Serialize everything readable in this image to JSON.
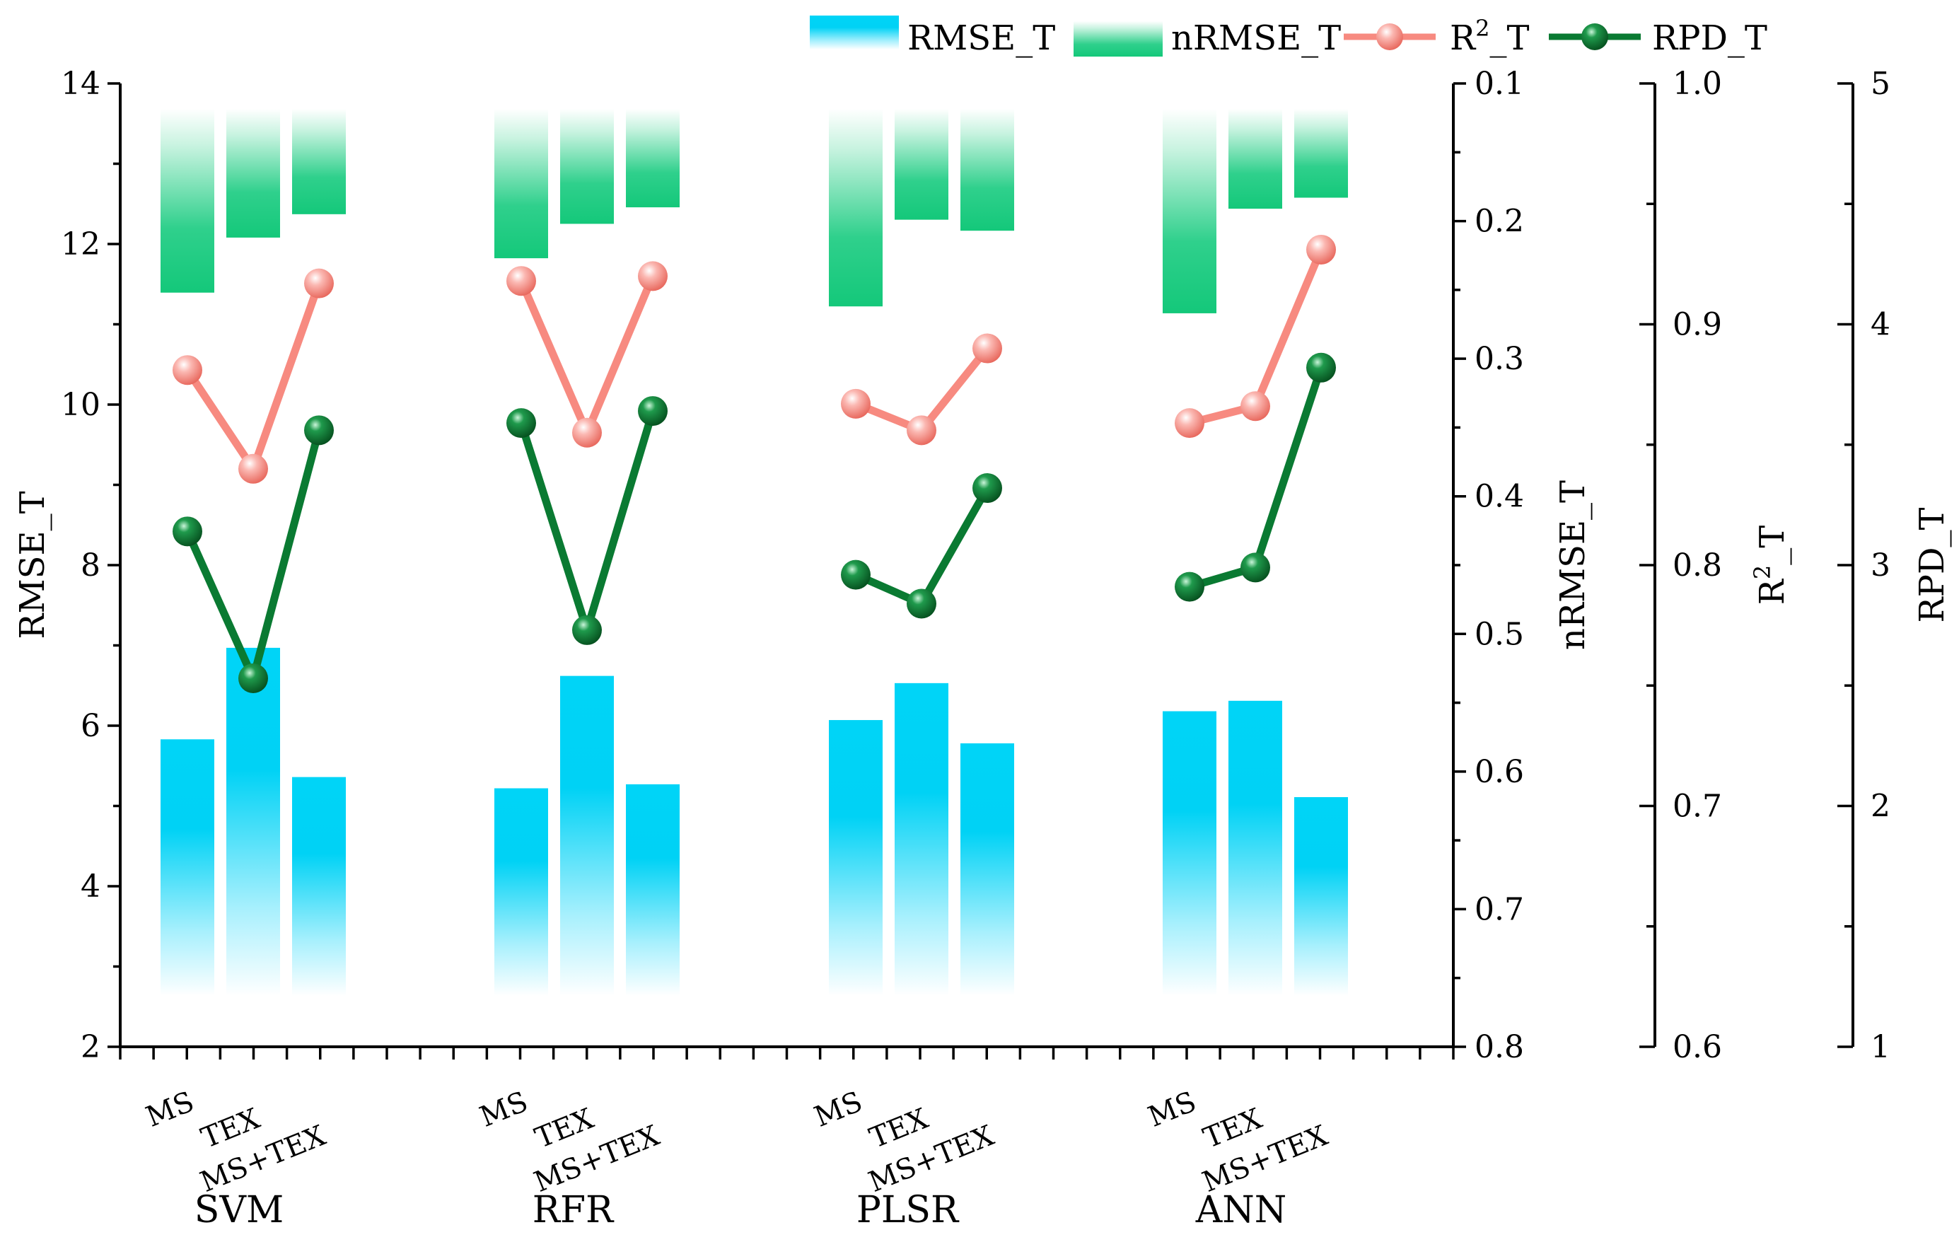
{
  "chart_data": {
    "type": "bar+line",
    "groups": [
      {
        "name": "SVM",
        "models": [
          "MS",
          "TEX",
          "MS+TEX"
        ]
      },
      {
        "name": "RFR",
        "models": [
          "MS",
          "TEX",
          "MS+TEX"
        ]
      },
      {
        "name": "PLSR",
        "models": [
          "MS",
          "TEX",
          "MS+TEX"
        ]
      },
      {
        "name": "ANN",
        "models": [
          "MS",
          "TEX",
          "MS+TEX"
        ]
      }
    ],
    "series": [
      {
        "name": "RMSE_T",
        "type": "bar",
        "axis": "RMSE_T",
        "values": [
          5.83,
          6.97,
          5.36,
          5.22,
          6.62,
          5.27,
          6.07,
          6.53,
          5.78,
          6.18,
          6.31,
          5.11
        ]
      },
      {
        "name": "nRMSE_T",
        "type": "bar-inverted",
        "axis": "nRMSE_T",
        "values": [
          0.252,
          0.212,
          0.195,
          0.227,
          0.202,
          0.19,
          0.262,
          0.199,
          0.207,
          0.267,
          0.191,
          0.183
        ]
      },
      {
        "name": "R²_T",
        "type": "line",
        "axis": "R2_T",
        "values": [
          0.881,
          0.84,
          0.917,
          0.918,
          0.855,
          0.92,
          0.867,
          0.856,
          0.89,
          0.859,
          0.866,
          0.931
        ]
      },
      {
        "name": "RPD_T",
        "type": "line",
        "axis": "RPD_T",
        "values": [
          3.14,
          2.53,
          3.56,
          3.59,
          2.73,
          3.64,
          2.96,
          2.84,
          3.32,
          2.91,
          2.99,
          3.82
        ]
      }
    ],
    "axes": [
      {
        "id": "RMSE_T",
        "title": "RMSE_T",
        "range": [
          2,
          14
        ],
        "ticks": [
          "2",
          "4",
          "6",
          "8",
          "10",
          "12",
          "14"
        ]
      },
      {
        "id": "nRMSE_T",
        "title": "nRMSE_T",
        "range": [
          0.8,
          0.1
        ],
        "inverted": true,
        "ticks": [
          "0.1",
          "0.2",
          "0.3",
          "0.4",
          "0.5",
          "0.6",
          "0.7",
          "0.8"
        ]
      },
      {
        "id": "R2_T",
        "title_main": "R",
        "title_sup": "2",
        "title_tail": "_T",
        "range": [
          0.6,
          1.0
        ],
        "ticks": [
          "1.0",
          "0.9",
          "0.8",
          "0.7",
          "0.6"
        ]
      },
      {
        "id": "RPD_T",
        "title": "RPD_T",
        "range": [
          1,
          5
        ],
        "ticks": [
          "5",
          "4",
          "3",
          "2",
          "1"
        ]
      }
    ],
    "legend": {
      "position": "top",
      "entries": [
        {
          "label": "RMSE_T",
          "kind": "bar",
          "color": "#00d2f5"
        },
        {
          "label_main": "nRMSE_T",
          "kind": "bar",
          "color": "#14c87a"
        },
        {
          "label_main": "R",
          "label_sup": "2",
          "label_tail": "_T",
          "kind": "line",
          "color": "#f78a80"
        },
        {
          "label_main": "RPD_T",
          "kind": "line",
          "color": "#0a7a32"
        }
      ]
    },
    "colors": {
      "rmse": "#00d2f5",
      "nrmse": "#14c87a",
      "r2": "#f78a80",
      "rpd": "#0a7a32"
    }
  }
}
